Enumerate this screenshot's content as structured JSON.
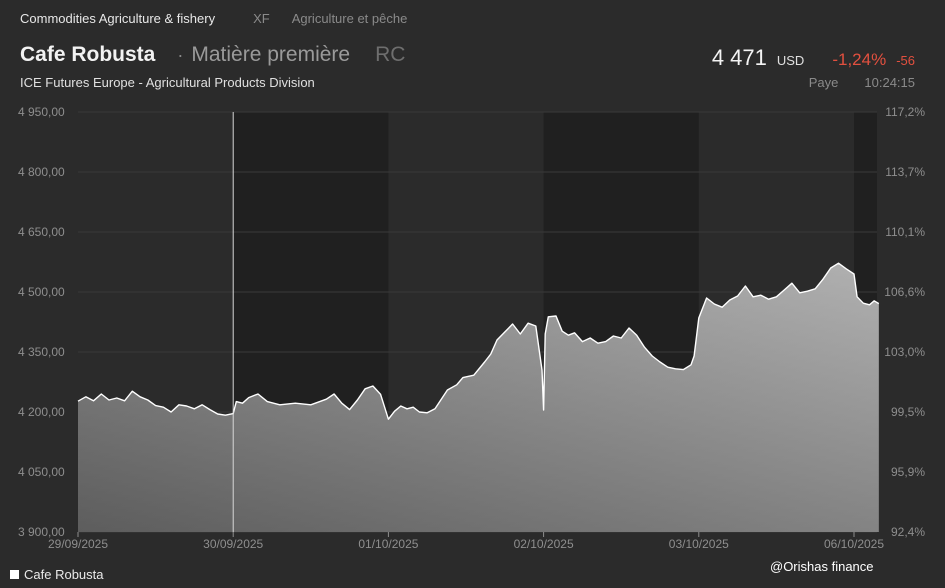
{
  "header": {
    "category": "Commodities Agriculture & fishery",
    "exchange_code": "XF",
    "asset_type": "Agriculture et pêche",
    "title": "Cafe Robusta",
    "separator": "·",
    "subtitle": "Matière première",
    "symbol": "RC",
    "exchange_full": "ICE Futures Europe - Agricultural Products Division"
  },
  "quote": {
    "price": "4 471",
    "currency": "USD",
    "change_pct": "-1,24%",
    "change_abs": "-56",
    "status": "Paye",
    "time": "10:24:15"
  },
  "legend": {
    "label": "Cafe Robusta"
  },
  "watermark": "@Orishas finance",
  "colors": {
    "background": "#2b2b2b",
    "shaded_band": "#202020",
    "negative": "#e2503f",
    "series_line": "#ffffff"
  },
  "chart_data": {
    "type": "area",
    "title": "",
    "xlabel": "",
    "ylabel": "",
    "ylim": [
      3900,
      4950
    ],
    "y_ticks": [
      3900,
      4050,
      4200,
      4350,
      4500,
      4650,
      4800,
      4950
    ],
    "y_tick_labels": [
      "3 900,00",
      "4 050,00",
      "4 200,00",
      "4 350,00",
      "4 500,00",
      "4 650,00",
      "4 800,00",
      "4 950,00"
    ],
    "y2_ticks": [
      {
        "value": 3900,
        "label": "92,4%"
      },
      {
        "value": 4050,
        "label": "95,9%"
      },
      {
        "value": 4200,
        "label": "99,5%"
      },
      {
        "value": 4350,
        "label": "103,0%"
      },
      {
        "value": 4500,
        "label": "106,6%"
      },
      {
        "value": 4650,
        "label": "110,1%"
      },
      {
        "value": 4800,
        "label": "113,7%"
      },
      {
        "value": 4950,
        "label": "117,2%"
      }
    ],
    "x_range": [
      0,
      5.16
    ],
    "x_ticks": [
      {
        "value": 0,
        "label": "29/09/2025"
      },
      {
        "value": 1,
        "label": "30/09/2025"
      },
      {
        "value": 2,
        "label": "01/10/2025"
      },
      {
        "value": 3,
        "label": "02/10/2025"
      },
      {
        "value": 4,
        "label": "03/10/2025"
      },
      {
        "value": 5,
        "label": "06/10/2025"
      }
    ],
    "grid": true,
    "legend_position": "bottom-left",
    "series": [
      {
        "name": "Cafe Robusta",
        "points": [
          [
            0.0,
            4227
          ],
          [
            0.05,
            4238
          ],
          [
            0.1,
            4228
          ],
          [
            0.15,
            4245
          ],
          [
            0.2,
            4230
          ],
          [
            0.25,
            4235
          ],
          [
            0.3,
            4228
          ],
          [
            0.35,
            4252
          ],
          [
            0.4,
            4238
          ],
          [
            0.45,
            4230
          ],
          [
            0.5,
            4216
          ],
          [
            0.55,
            4212
          ],
          [
            0.6,
            4200
          ],
          [
            0.65,
            4218
          ],
          [
            0.7,
            4215
          ],
          [
            0.75,
            4208
          ],
          [
            0.8,
            4218
          ],
          [
            0.85,
            4206
          ],
          [
            0.9,
            4195
          ],
          [
            0.95,
            4192
          ],
          [
            1.0,
            4196
          ],
          [
            1.02,
            4226
          ],
          [
            1.06,
            4222
          ],
          [
            1.1,
            4236
          ],
          [
            1.16,
            4245
          ],
          [
            1.22,
            4226
          ],
          [
            1.3,
            4218
          ],
          [
            1.4,
            4222
          ],
          [
            1.5,
            4218
          ],
          [
            1.6,
            4232
          ],
          [
            1.65,
            4245
          ],
          [
            1.7,
            4222
          ],
          [
            1.75,
            4206
          ],
          [
            1.8,
            4230
          ],
          [
            1.85,
            4258
          ],
          [
            1.9,
            4265
          ],
          [
            1.95,
            4244
          ],
          [
            2.0,
            4182
          ],
          [
            2.04,
            4202
          ],
          [
            2.08,
            4215
          ],
          [
            2.12,
            4208
          ],
          [
            2.16,
            4212
          ],
          [
            2.2,
            4200
          ],
          [
            2.25,
            4198
          ],
          [
            2.3,
            4208
          ],
          [
            2.38,
            4255
          ],
          [
            2.44,
            4268
          ],
          [
            2.48,
            4286
          ],
          [
            2.55,
            4292
          ],
          [
            2.62,
            4325
          ],
          [
            2.66,
            4345
          ],
          [
            2.7,
            4380
          ],
          [
            2.75,
            4400
          ],
          [
            2.8,
            4420
          ],
          [
            2.85,
            4395
          ],
          [
            2.9,
            4422
          ],
          [
            2.95,
            4415
          ],
          [
            2.99,
            4305
          ],
          [
            3.0,
            4205
          ],
          [
            3.01,
            4395
          ],
          [
            3.03,
            4438
          ],
          [
            3.08,
            4440
          ],
          [
            3.12,
            4402
          ],
          [
            3.16,
            4392
          ],
          [
            3.2,
            4398
          ],
          [
            3.25,
            4376
          ],
          [
            3.3,
            4385
          ],
          [
            3.35,
            4372
          ],
          [
            3.4,
            4376
          ],
          [
            3.45,
            4390
          ],
          [
            3.5,
            4385
          ],
          [
            3.55,
            4410
          ],
          [
            3.6,
            4392
          ],
          [
            3.65,
            4362
          ],
          [
            3.7,
            4340
          ],
          [
            3.75,
            4325
          ],
          [
            3.8,
            4312
          ],
          [
            3.85,
            4308
          ],
          [
            3.9,
            4306
          ],
          [
            3.95,
            4318
          ],
          [
            3.97,
            4340
          ],
          [
            4.0,
            4435
          ],
          [
            4.05,
            4485
          ],
          [
            4.1,
            4470
          ],
          [
            4.15,
            4462
          ],
          [
            4.2,
            4480
          ],
          [
            4.25,
            4490
          ],
          [
            4.3,
            4515
          ],
          [
            4.35,
            4488
          ],
          [
            4.4,
            4492
          ],
          [
            4.45,
            4482
          ],
          [
            4.5,
            4488
          ],
          [
            4.55,
            4505
          ],
          [
            4.6,
            4522
          ],
          [
            4.65,
            4498
          ],
          [
            4.7,
            4502
          ],
          [
            4.75,
            4508
          ],
          [
            4.8,
            4532
          ],
          [
            4.85,
            4560
          ],
          [
            4.9,
            4572
          ],
          [
            4.95,
            4558
          ],
          [
            5.0,
            4545
          ],
          [
            5.02,
            4488
          ],
          [
            5.06,
            4472
          ],
          [
            5.1,
            4468
          ],
          [
            5.13,
            4478
          ],
          [
            5.16,
            4471
          ]
        ]
      }
    ],
    "markers": [
      {
        "type": "vertical_line",
        "x": 1.0
      }
    ],
    "shaded_ranges": [
      [
        1.0,
        2.0
      ],
      [
        3.0,
        4.0
      ],
      [
        5.0,
        5.16
      ]
    ]
  }
}
